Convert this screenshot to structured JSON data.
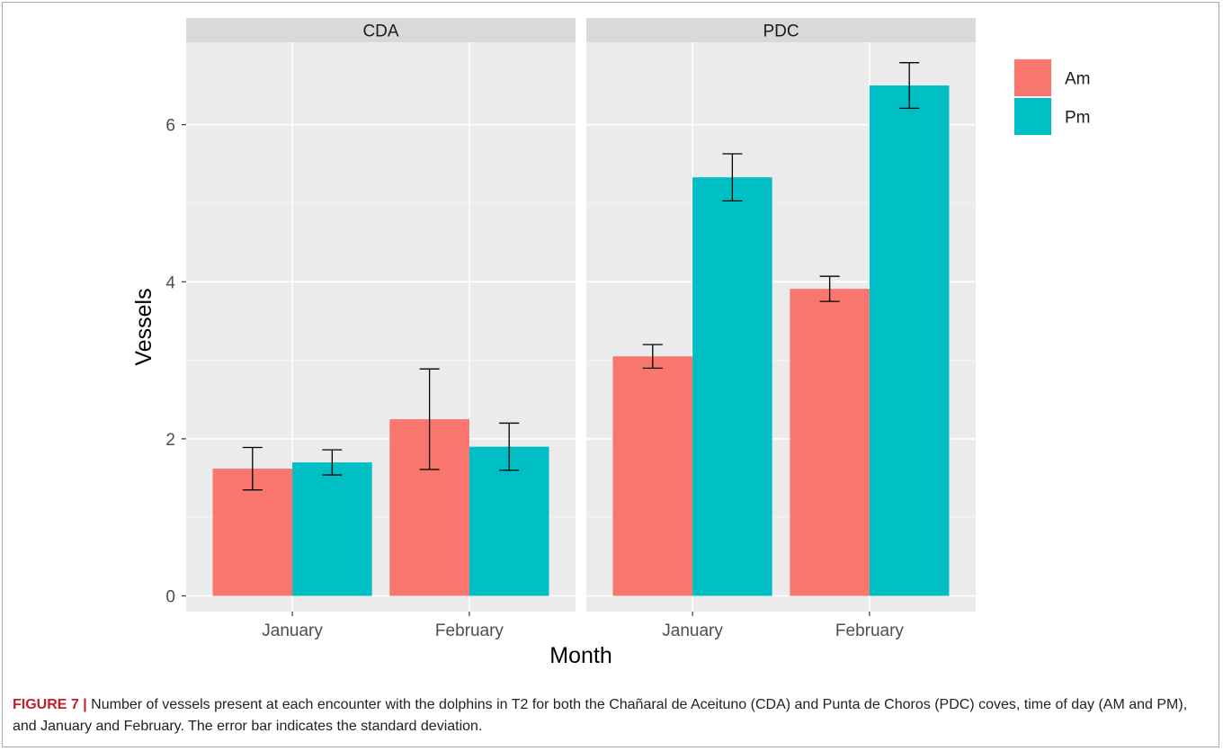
{
  "chart_data": {
    "type": "bar",
    "facets": [
      "CDA",
      "PDC"
    ],
    "categories": [
      "January",
      "February"
    ],
    "series": [
      {
        "name": "Am",
        "color": "#F8766D"
      },
      {
        "name": "Pm",
        "color": "#00BFC4"
      }
    ],
    "values": {
      "CDA": {
        "Am": [
          1.62,
          2.25
        ],
        "Pm": [
          1.7,
          1.9
        ]
      },
      "PDC": {
        "Am": [
          3.05,
          3.91
        ],
        "Pm": [
          5.33,
          6.5
        ]
      }
    },
    "errors": {
      "CDA": {
        "Am": [
          0.27,
          0.64
        ],
        "Pm": [
          0.16,
          0.3
        ]
      },
      "PDC": {
        "Am": [
          0.15,
          0.16
        ],
        "Pm": [
          0.3,
          0.29
        ]
      }
    },
    "xlabel": "Month",
    "ylabel": "Vessels",
    "ylim": [
      -0.2,
      7.05
    ],
    "yticks": [
      0,
      2,
      4,
      6
    ],
    "legend_position": "right"
  },
  "caption": {
    "label": "FIGURE 7 |",
    "text": " Number of vessels present at each encounter with the dolphins in T2 for both the Chañaral de Aceituno (CDA) and Punta de Choros (PDC) coves, time of day (AM and PM), and January and February. The error bar indicates the standard deviation."
  }
}
